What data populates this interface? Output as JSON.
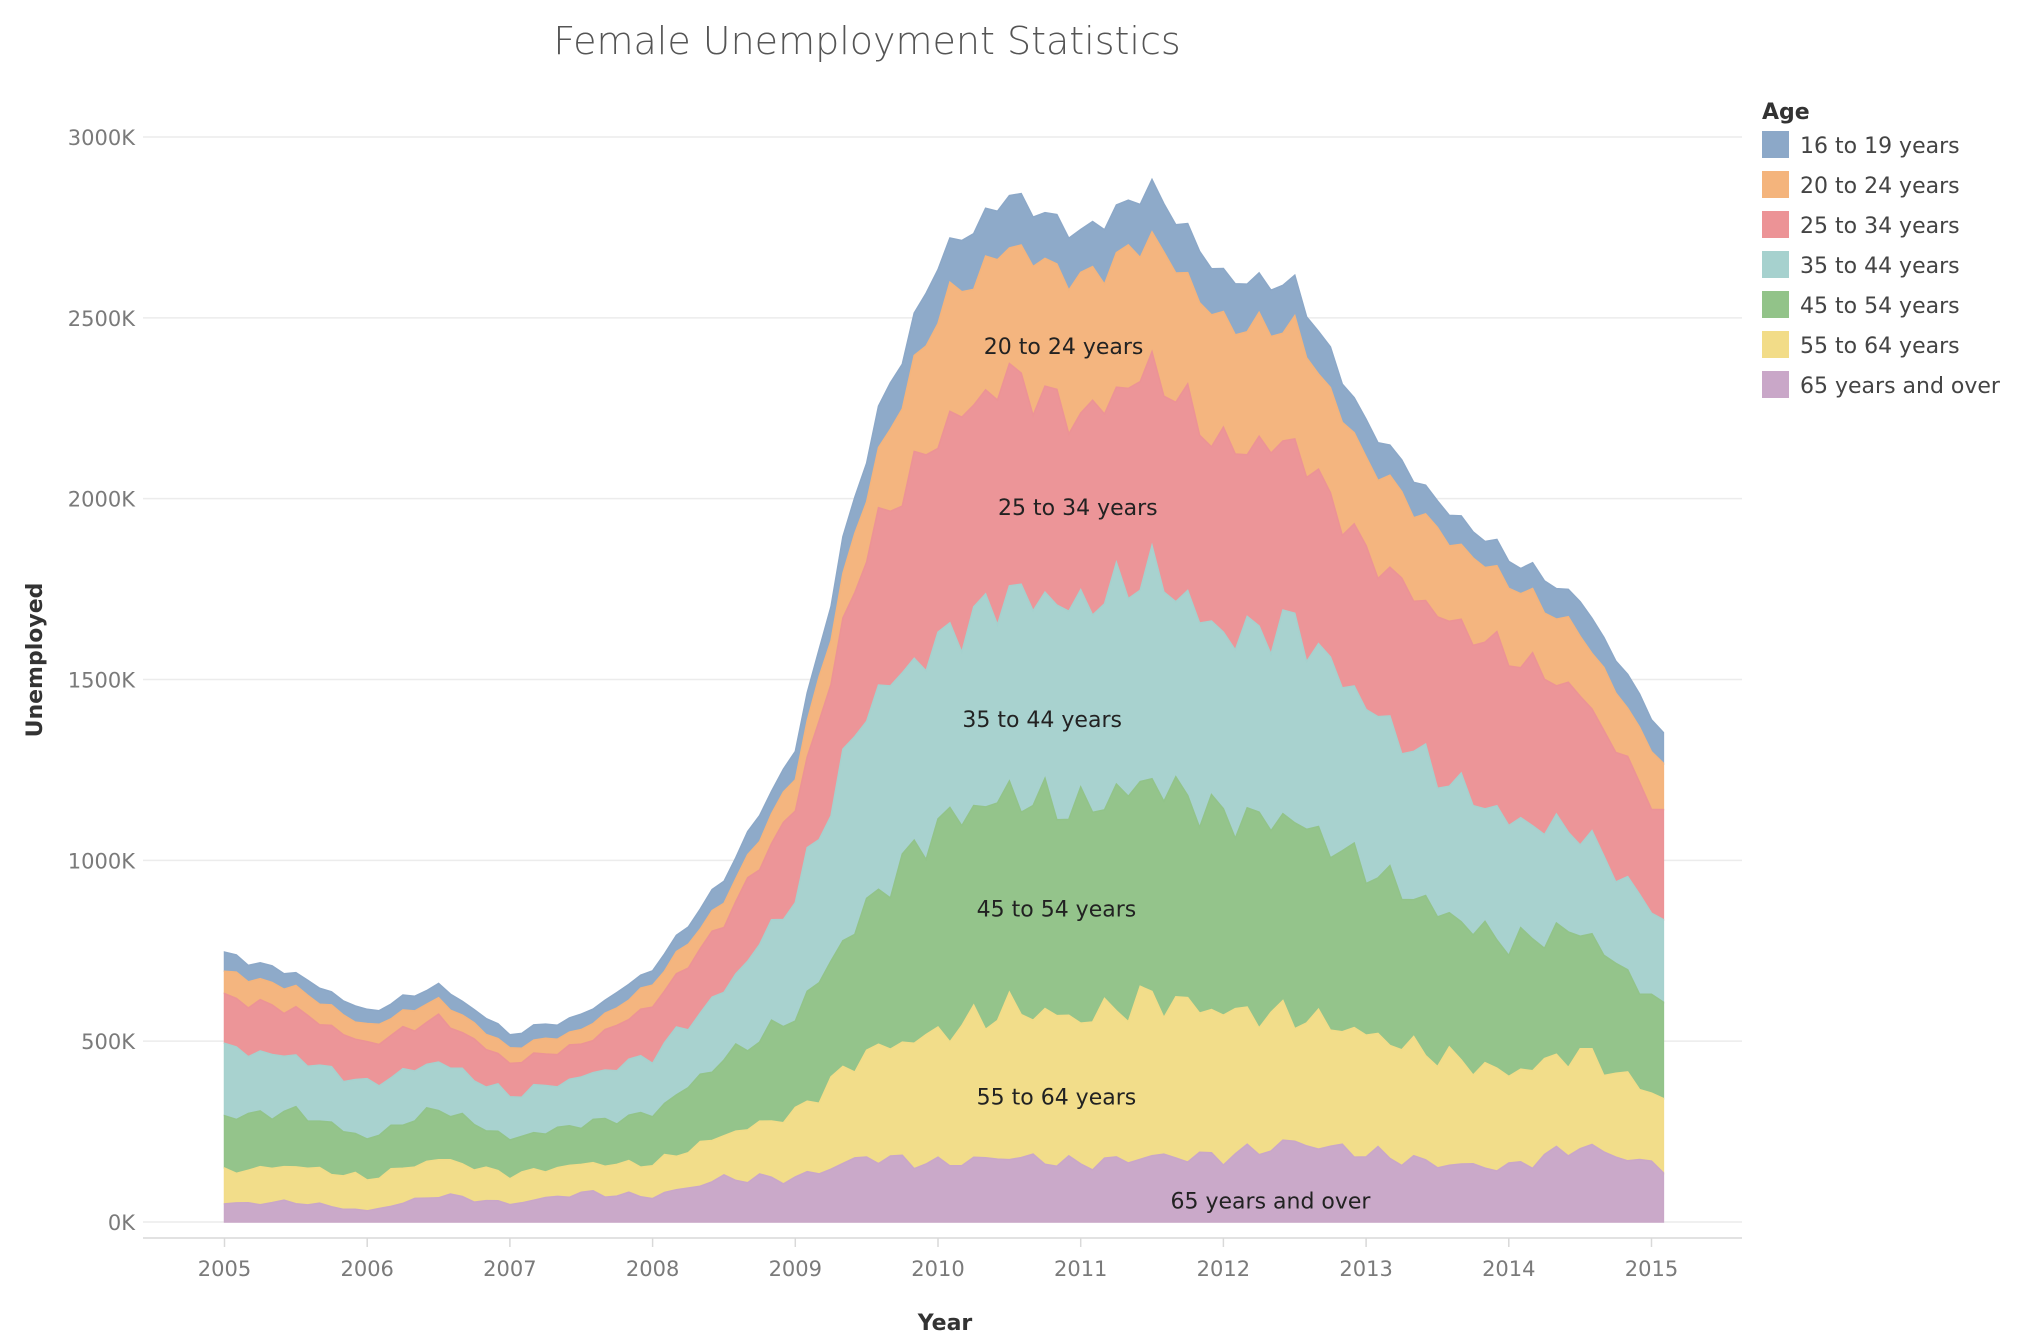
{
  "chart_data": {
    "type": "area",
    "stacked": true,
    "title": "Female Unemployment Statistics",
    "xlabel": "Year",
    "ylabel": "Unemployed",
    "xlim": [
      2004.45,
      2015.6
    ],
    "ylim": [
      0,
      3000000
    ],
    "x_ticks": [
      "2005",
      "2006",
      "2007",
      "2008",
      "2009",
      "2010",
      "2011",
      "2012",
      "2013",
      "2014",
      "2015"
    ],
    "y_ticks": [
      "0K",
      "500K",
      "1000K",
      "1500K",
      "2000K",
      "2500K",
      "3000K"
    ],
    "grid": true,
    "legend": {
      "title": "Age",
      "position": "right"
    },
    "x_anchor": [
      2005.0,
      2005.5,
      2006.0,
      2006.5,
      2007.0,
      2007.5,
      2008.0,
      2008.5,
      2009.0,
      2009.5,
      2010.0,
      2010.5,
      2011.0,
      2011.5,
      2012.0,
      2012.5,
      2013.0,
      2013.5,
      2014.0,
      2014.5,
      2015.08
    ],
    "series": [
      {
        "name": "65 years and over",
        "color": "#c9a7c8",
        "anchor_values": [
          50000,
          55000,
          30000,
          75000,
          50000,
          80000,
          70000,
          120000,
          120000,
          180000,
          160000,
          180000,
          160000,
          180000,
          180000,
          220000,
          190000,
          160000,
          150000,
          210000,
          150000
        ]
      },
      {
        "name": "55 to 64 years",
        "color": "#f2dc88",
        "anchor_values": [
          90000,
          100000,
          90000,
          100000,
          80000,
          80000,
          90000,
          120000,
          180000,
          290000,
          360000,
          410000,
          400000,
          440000,
          400000,
          350000,
          330000,
          300000,
          260000,
          260000,
          190000
        ]
      },
      {
        "name": "45 to 54 years",
        "color": "#92c389",
        "anchor_values": [
          150000,
          150000,
          110000,
          140000,
          100000,
          110000,
          140000,
          210000,
          270000,
          400000,
          580000,
          590000,
          580000,
          600000,
          540000,
          540000,
          460000,
          400000,
          360000,
          340000,
          250000
        ]
      },
      {
        "name": "35 to 44 years",
        "color": "#a6d1ce",
        "anchor_values": [
          190000,
          150000,
          150000,
          130000,
          120000,
          130000,
          160000,
          190000,
          330000,
          560000,
          500000,
          560000,
          560000,
          580000,
          500000,
          540000,
          450000,
          380000,
          340000,
          270000,
          240000
        ]
      },
      {
        "name": "25 to 34 years",
        "color": "#ec9396",
        "anchor_values": [
          140000,
          130000,
          110000,
          120000,
          90000,
          90000,
          140000,
          190000,
          250000,
          440000,
          580000,
          600000,
          520000,
          560000,
          520000,
          500000,
          420000,
          440000,
          460000,
          380000,
          290000
        ]
      },
      {
        "name": "20 to 24 years",
        "color": "#f4b47c",
        "anchor_values": [
          70000,
          60000,
          50000,
          50000,
          40000,
          40000,
          60000,
          60000,
          90000,
          160000,
          340000,
          360000,
          380000,
          360000,
          340000,
          320000,
          260000,
          230000,
          200000,
          170000,
          140000
        ]
      },
      {
        "name": "16 to 19 years",
        "color": "#8ca8c8",
        "anchor_values": [
          50000,
          40000,
          40000,
          40000,
          40000,
          40000,
          40000,
          60000,
          70000,
          110000,
          140000,
          140000,
          130000,
          140000,
          130000,
          120000,
          100000,
          80000,
          70000,
          90000,
          90000
        ]
      }
    ],
    "annotations": [
      {
        "series": "20 to 24 years",
        "text": "20 to 24 years",
        "x": 2010.88,
        "y": 2400000
      },
      {
        "series": "25 to 34 years",
        "text": "25 to 34 years",
        "x": 2010.98,
        "y": 1955000
      },
      {
        "series": "35 to 44 years",
        "text": "35 to 44 years",
        "x": 2010.73,
        "y": 1368000
      },
      {
        "series": "45 to 54 years",
        "text": "45 to 54 years",
        "x": 2010.83,
        "y": 845000
      },
      {
        "series": "55 to 64 years",
        "text": "55 to 64 years",
        "x": 2010.83,
        "y": 325000
      },
      {
        "series": "65 years and over",
        "text": "65 years and over",
        "x": 2012.33,
        "y": 38000
      }
    ]
  }
}
